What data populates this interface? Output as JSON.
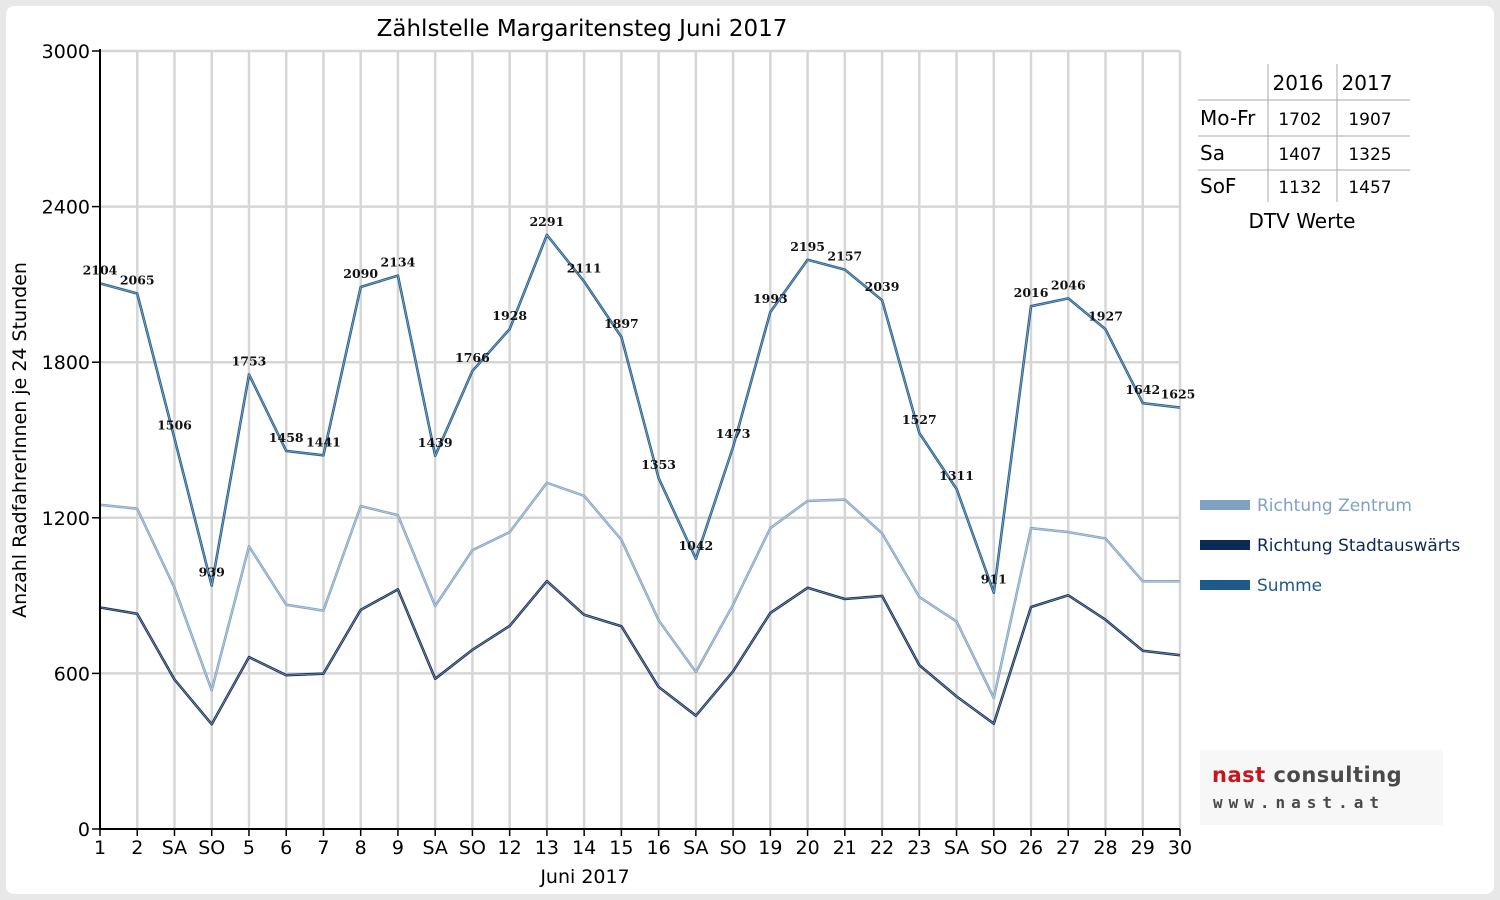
{
  "colors": {
    "zentrum": "#7fa1c2",
    "stadtauswaerts": "#0d2a55",
    "summe": "#1d5a8a",
    "weekend_red": "#ff0000"
  },
  "legend": [
    {
      "name": "Richtung Zentrum",
      "color_key": "zentrum"
    },
    {
      "name": "Richtung Stadtauswärts",
      "color_key": "stadtauswaerts"
    },
    {
      "name": "Summe",
      "color_key": "summe"
    }
  ],
  "dtv_table": {
    "headers": [
      "2016",
      "2017"
    ],
    "rows": [
      {
        "label": "Mo-Fr",
        "v2016": "1702",
        "v2017": "1907"
      },
      {
        "label": "Sa",
        "v2016": "1407",
        "v2017": "1325"
      },
      {
        "label": "SoF",
        "v2016": "1132",
        "v2017": "1457"
      }
    ],
    "caption": "DTV Werte"
  },
  "logo": {
    "brand_red": "nast",
    "brand_gray": "consulting",
    "url": "www.nast.at"
  },
  "chart_data": {
    "type": "line",
    "title": "Zählstelle Margaritensteg Juni 2017",
    "xlabel": "Juni 2017",
    "ylabel": "Anzahl RadfahrerInnen je 24 Stunden",
    "ylim": [
      0,
      3000
    ],
    "yticks": [
      0,
      600,
      1200,
      1800,
      2400,
      3000
    ],
    "grid": true,
    "legend_position": "right",
    "categories": [
      "1",
      "2",
      "SA",
      "SO",
      "5",
      "6",
      "7",
      "8",
      "9",
      "SA",
      "SO",
      "12",
      "13",
      "14",
      "15",
      "16",
      "SA",
      "SO",
      "19",
      "20",
      "21",
      "22",
      "23",
      "SA",
      "SO",
      "26",
      "27",
      "28",
      "29",
      "30"
    ],
    "red_categories": [
      3,
      4,
      10,
      14,
      17,
      24
    ],
    "series": [
      {
        "name": "Richtung Zentrum",
        "color_key": "zentrum",
        "values": [
          1250,
          1235,
          930,
          535,
          1090,
          865,
          842,
          1245,
          1210,
          860,
          1075,
          1145,
          1335,
          1285,
          1115,
          805,
          605,
          865,
          1160,
          1265,
          1270,
          1140,
          895,
          800,
          505,
          1160,
          1145,
          1120,
          955,
          955
        ]
      },
      {
        "name": "Richtung Stadtauswärts",
        "color_key": "stadtauswaerts",
        "values": [
          854,
          830,
          576,
          404,
          663,
          593,
          599,
          845,
          924,
          579,
          691,
          783,
          956,
          826,
          782,
          548,
          437,
          608,
          833,
          930,
          887,
          899,
          632,
          511,
          406,
          856,
          901,
          807,
          687,
          670
        ]
      },
      {
        "name": "Summe",
        "color_key": "summe",
        "labeled": true,
        "values": [
          2104,
          2065,
          1506,
          939,
          1753,
          1458,
          1441,
          2090,
          2134,
          1439,
          1766,
          1928,
          2291,
          2111,
          1897,
          1353,
          1042,
          1473,
          1993,
          2195,
          2157,
          2039,
          1527,
          1311,
          911,
          2016,
          2046,
          1927,
          1642,
          1625
        ]
      }
    ]
  }
}
